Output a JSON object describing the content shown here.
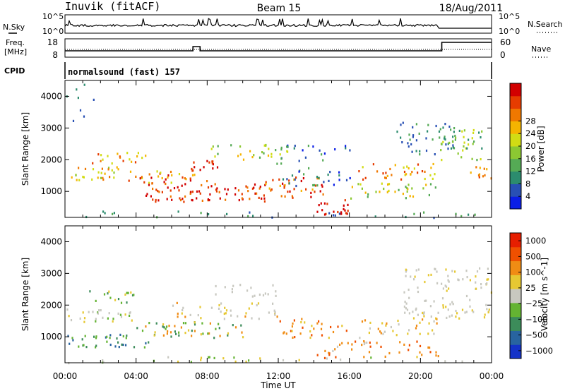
{
  "header": {
    "station": "Inuvik (fitACF)",
    "beam": "Beam 15",
    "date": "18/Aug/2011"
  },
  "top_panels": {
    "nsky_label": "N.Sky",
    "nsky_top": "10^5",
    "nsky_bottom": "10^0",
    "nsearch_label": "N.Search",
    "nsearch_top": "10^5",
    "nsearch_bottom": "10^0",
    "freq_label": "Freq.",
    "freq_unit": "[MHz]",
    "freq_ticks": [
      "18",
      "8"
    ],
    "nave_label": "Nave",
    "nave_ticks": [
      "60",
      "0"
    ],
    "cpid_label": "CPID",
    "cpid_value": "normalsound (fast) 157"
  },
  "chart_data": [
    {
      "type": "heatmap",
      "title": "",
      "quantity": "Power",
      "xlabel": "",
      "ylabel": "Slant Range [km]",
      "xlim": [
        "00:00",
        "24:00"
      ],
      "ylim": [
        180,
        4500
      ],
      "x_ticks": [
        "00:00",
        "04:00",
        "08:00",
        "12:00",
        "16:00",
        "20:00",
        "00:00"
      ],
      "y_ticks": [
        1000,
        2000,
        3000,
        4000
      ],
      "colorbar": {
        "label": "Power [dB]",
        "ticks": [
          "4",
          "8",
          "12",
          "16",
          "20",
          "24",
          "28"
        ],
        "colors": [
          "#0a1ee6",
          "#2850b4",
          "#2c8c6e",
          "#55aa55",
          "#8cc832",
          "#d2dc14",
          "#f5b400",
          "#f07800",
          "#e63c00",
          "#d20000"
        ]
      }
    },
    {
      "type": "heatmap",
      "title": "",
      "quantity": "Velocity",
      "xlabel": "Time UT",
      "ylabel": "Slant Range [km]",
      "xlim": [
        "00:00",
        "24:00"
      ],
      "ylim": [
        180,
        4500
      ],
      "x_ticks": [
        "00:00",
        "04:00",
        "08:00",
        "12:00",
        "16:00",
        "20:00",
        "00:00"
      ],
      "y_ticks": [
        1000,
        2000,
        3000,
        4000
      ],
      "colorbar": {
        "label": "Velocity [m s^-1]",
        "ticks": [
          "1000",
          "500",
          "100",
          "25",
          "−25",
          "−100",
          "−500",
          "−1000"
        ],
        "colors": [
          "#1432c8",
          "#2864a0",
          "#3c8c5a",
          "#64b432",
          "#c8c8c0",
          "#e6c832",
          "#f08c14",
          "#f05000",
          "#e61e00"
        ]
      }
    }
  ]
}
